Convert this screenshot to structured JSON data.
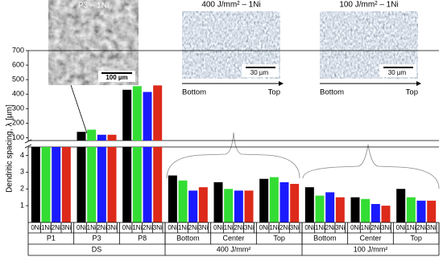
{
  "chart_data": {
    "type": "bar",
    "y_label": "Dendritic spacing, λ [µm]",
    "ylim_lower": [
      0,
      4.5
    ],
    "yticks_lower": [
      1,
      2,
      3,
      4
    ],
    "ylim_upper": [
      80,
      700
    ],
    "yticks_upper": [
      100,
      200,
      300,
      400,
      500,
      600,
      700
    ],
    "groups": [
      {
        "name": "DS",
        "categories": [
          "P1",
          "P3",
          "P8"
        ]
      },
      {
        "name": "400 J/mm²",
        "categories": [
          "Bottom",
          "Center",
          "Top"
        ]
      },
      {
        "name": "100 J/mm²",
        "categories": [
          "Bottom",
          "Center",
          "Top"
        ]
      }
    ],
    "series": [
      {
        "name": "0Ni",
        "color": "#000000",
        "values": [
          60,
          140,
          430,
          2.8,
          2.4,
          2.6,
          2.1,
          1.5,
          2.0
        ]
      },
      {
        "name": "1Ni",
        "color": "#33dd33",
        "values": [
          65,
          155,
          455,
          2.5,
          2.0,
          2.7,
          1.6,
          1.4,
          1.5
        ]
      },
      {
        "name": "2Ni",
        "color": "#1a1aff",
        "values": [
          65,
          120,
          415,
          1.9,
          1.9,
          2.4,
          1.8,
          1.1,
          1.3
        ]
      },
      {
        "name": "3Ni",
        "color": "#dd2a1a",
        "values": [
          65,
          120,
          460,
          2.1,
          1.9,
          2.3,
          1.5,
          1.0,
          1.3
        ]
      }
    ],
    "images": [
      {
        "title": "P3 – 1Ni",
        "scale": "100 µm"
      },
      {
        "title": "400 J/mm² – 1Ni",
        "scale": "30 µm",
        "from": "Bottom",
        "to": "Top"
      },
      {
        "title": "100 J/mm² – 1Ni",
        "scale": "30 µm",
        "from": "Bottom",
        "to": "Top"
      }
    ]
  }
}
